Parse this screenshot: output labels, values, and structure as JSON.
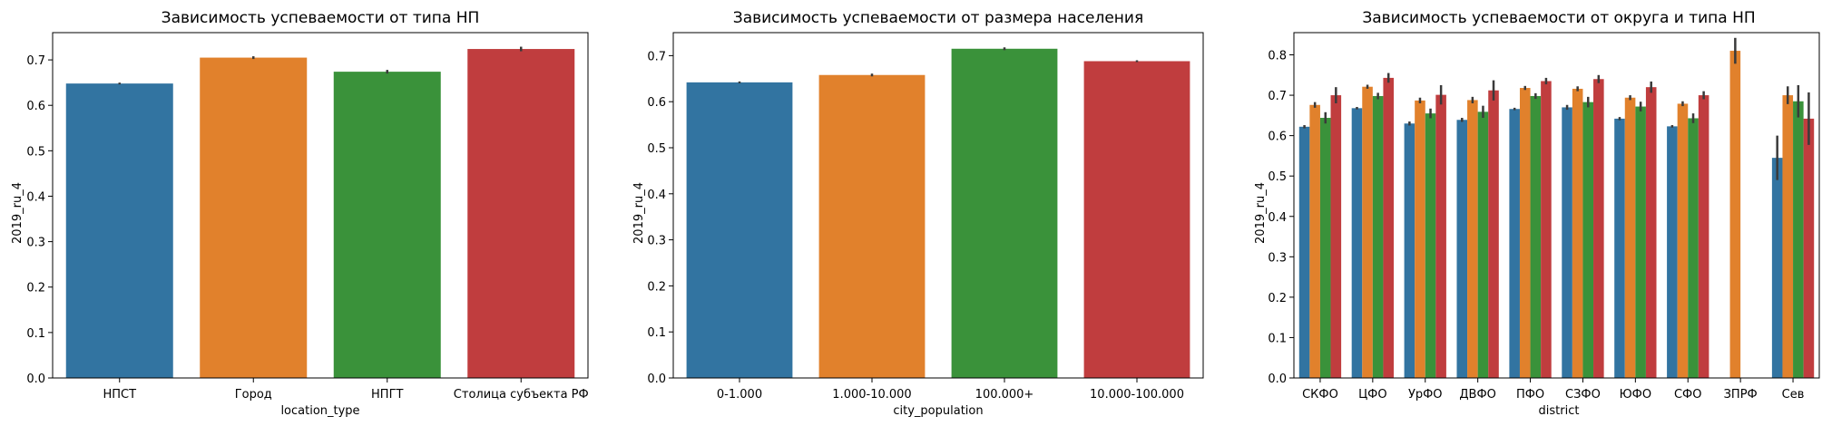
{
  "colors": {
    "blue": "#3274a1",
    "orange": "#e1812c",
    "green": "#3a923a",
    "red": "#c03d3e",
    "errbar": "#3a3a3a"
  },
  "chart_data": [
    {
      "type": "bar",
      "title": "Зависимость успеваемости от типа НП",
      "xlabel": "location_type",
      "ylabel": "2019_ru_4",
      "ylim": [
        0,
        0.76
      ],
      "yticks": [
        "0.0",
        "0.1",
        "0.2",
        "0.3",
        "0.4",
        "0.5",
        "0.6",
        "0.7"
      ],
      "categories": [
        "НПСТ",
        "Город",
        "НПГТ",
        "Столица субъекта РФ"
      ],
      "values": [
        0.648,
        0.705,
        0.674,
        0.724
      ],
      "errors": [
        0.002,
        0.003,
        0.004,
        0.005
      ],
      "colors": [
        "blue",
        "orange",
        "green",
        "red"
      ]
    },
    {
      "type": "bar",
      "title": "Зависимость успеваемости от размера населения",
      "xlabel": "city_population",
      "ylabel": "2019_ru_4",
      "ylim": [
        0,
        0.75
      ],
      "yticks": [
        "0.0",
        "0.1",
        "0.2",
        "0.3",
        "0.4",
        "0.5",
        "0.6",
        "0.7"
      ],
      "categories": [
        "0-1.000",
        "1.000-10.000",
        "100.000+",
        "10.000-100.000"
      ],
      "values": [
        0.642,
        0.658,
        0.715,
        0.688
      ],
      "errors": [
        0.002,
        0.003,
        0.003,
        0.002
      ],
      "colors": [
        "blue",
        "orange",
        "green",
        "red"
      ]
    },
    {
      "type": "bar",
      "title": "Зависимость успеваемости от округа и типа НП",
      "xlabel": "district",
      "ylabel": "2019_ru_4",
      "ylim": [
        0,
        0.855
      ],
      "yticks": [
        "0.0",
        "0.1",
        "0.2",
        "0.3",
        "0.4",
        "0.5",
        "0.6",
        "0.7",
        "0.8"
      ],
      "categories": [
        "СКФО",
        "ЦФО",
        "УрФО",
        "ДВФО",
        "ПФО",
        "СЗФО",
        "ЮФО",
        "СФО",
        "ЗПРФ",
        "Сев"
      ],
      "series": [
        {
          "color": "blue",
          "values": [
            0.622,
            0.668,
            0.63,
            0.639,
            0.666,
            0.67,
            0.642,
            0.623,
            null,
            0.545
          ],
          "errors": [
            0.004,
            0.003,
            0.005,
            0.005,
            0.003,
            0.006,
            0.004,
            0.003,
            null,
            0.055
          ]
        },
        {
          "color": "orange",
          "values": [
            0.676,
            0.721,
            0.687,
            0.688,
            0.718,
            0.716,
            0.694,
            0.679,
            0.81,
            0.7
          ],
          "errors": [
            0.007,
            0.005,
            0.007,
            0.008,
            0.005,
            0.006,
            0.006,
            0.006,
            0.032,
            0.022
          ]
        },
        {
          "color": "green",
          "values": [
            0.644,
            0.698,
            0.655,
            0.659,
            0.698,
            0.683,
            0.672,
            0.643,
            null,
            0.685
          ],
          "errors": [
            0.014,
            0.008,
            0.012,
            0.015,
            0.007,
            0.013,
            0.012,
            0.012,
            null,
            0.04
          ]
        },
        {
          "color": "red",
          "values": [
            0.7,
            0.743,
            0.701,
            0.712,
            0.735,
            0.74,
            0.72,
            0.7,
            null,
            0.642
          ],
          "errors": [
            0.02,
            0.012,
            0.024,
            0.025,
            0.008,
            0.01,
            0.014,
            0.01,
            null,
            0.065
          ]
        }
      ]
    }
  ]
}
